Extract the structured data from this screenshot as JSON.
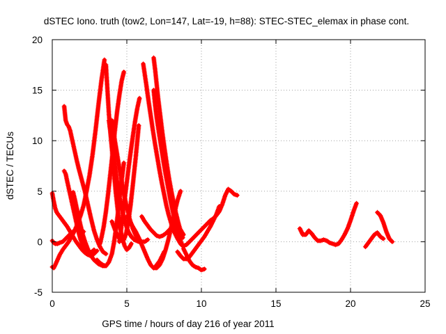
{
  "chart_data": {
    "type": "scatter",
    "title": "dSTEC Iono. truth (tow2, Lon=147, Lat=-19, h=88): STEC-STEC_elemax in phase cont.",
    "xlabel": "GPS time / hours of day 216 of year 2011",
    "ylabel": "dSTEC  / TECUs",
    "xlim": [
      0,
      25
    ],
    "ylim": [
      -5,
      20
    ],
    "xticks": [
      0,
      5,
      10,
      15,
      20,
      25
    ],
    "yticks": [
      -5,
      0,
      5,
      10,
      15,
      20
    ],
    "grid": true,
    "grid_style": "dotted",
    "marker": "plus",
    "colors": {
      "series": "#ff0000",
      "axes": "#000000",
      "grid": "#a0a0a0"
    },
    "series": [
      {
        "x": [
          0.0,
          0.1,
          0.2,
          0.3,
          0.45,
          0.6,
          0.8,
          1.0,
          1.2,
          1.4,
          1.6,
          1.8,
          2.0,
          2.2,
          2.4,
          2.6,
          2.8,
          3.0
        ],
        "y": [
          4.8,
          4.0,
          3.3,
          2.9,
          2.6,
          2.3,
          1.9,
          1.5,
          1.0,
          0.5,
          0.0,
          -0.4,
          -0.8,
          -1.1,
          -1.3,
          -1.4,
          -1.2,
          -0.9
        ]
      },
      {
        "x": [
          0.0,
          0.1,
          0.2,
          0.35,
          0.5,
          0.7,
          0.9,
          1.1,
          1.3,
          1.5,
          1.7,
          1.9,
          2.1
        ],
        "y": [
          0.1,
          -0.1,
          -0.2,
          -0.2,
          -0.1,
          0.0,
          0.3,
          0.6,
          0.9,
          1.1,
          1.3,
          1.2,
          1.0
        ]
      },
      {
        "x": [
          0.0,
          0.1,
          0.2,
          0.35,
          0.5,
          0.7,
          0.9,
          1.1,
          1.3,
          1.5,
          1.7,
          1.9,
          2.1,
          2.3,
          2.5,
          2.7,
          2.9,
          3.1,
          3.3,
          3.5
        ],
        "y": [
          -2.5,
          -2.6,
          -2.3,
          -1.8,
          -1.3,
          -0.8,
          -0.4,
          0.0,
          0.5,
          1.1,
          1.8,
          2.6,
          3.6,
          5.0,
          6.6,
          8.6,
          11.0,
          13.6,
          16.0,
          18.0
        ]
      },
      {
        "x": [
          0.8,
          0.9,
          1.0,
          1.1,
          1.2,
          1.35,
          1.5,
          1.65,
          1.8,
          2.0,
          2.2,
          2.4,
          2.6,
          2.8,
          3.0,
          3.2,
          3.4,
          3.6
        ],
        "y": [
          13.4,
          12.0,
          11.6,
          11.4,
          11.0,
          10.0,
          9.0,
          8.0,
          7.1,
          6.0,
          4.9,
          3.6,
          2.3,
          1.1,
          0.2,
          -0.5,
          -1.0,
          -1.2
        ]
      },
      {
        "x": [
          0.8,
          0.9,
          1.0,
          1.15,
          1.3,
          1.45,
          1.6,
          1.75,
          1.9,
          2.05,
          2.2,
          2.35,
          2.5,
          2.65,
          2.8
        ],
        "y": [
          7.0,
          6.7,
          6.0,
          5.0,
          4.0,
          3.0,
          2.0,
          1.0,
          0.2,
          -0.4,
          -0.8,
          -1.0,
          -1.1,
          -1.0,
          -0.8
        ]
      },
      {
        "x": [
          1.4,
          1.5,
          1.6,
          1.75,
          1.9,
          2.05,
          2.2,
          2.35,
          2.5,
          2.65,
          2.8,
          2.95,
          3.1,
          3.25,
          3.4,
          3.5
        ],
        "y": [
          4.9,
          4.3,
          3.6,
          2.6,
          1.6,
          0.7,
          0.0,
          -0.6,
          -1.1,
          -1.5,
          -1.8,
          -2.0,
          -2.2,
          -2.3,
          -2.4,
          -2.4
        ]
      },
      {
        "x": [
          3.0,
          3.2,
          3.4,
          3.6,
          3.8,
          4.0,
          4.15,
          4.3,
          4.45,
          4.6,
          4.8
        ],
        "y": [
          -1.8,
          -2.1,
          -2.3,
          -2.4,
          -2.0,
          -1.2,
          0.0,
          1.6,
          3.4,
          5.4,
          7.8
        ]
      },
      {
        "x": [
          3.6,
          3.7,
          3.8,
          3.95,
          4.1,
          4.25,
          4.4,
          4.55,
          4.7,
          4.85,
          5.0,
          5.15,
          5.3
        ],
        "y": [
          17.5,
          15.0,
          12.6,
          10.0,
          7.5,
          5.0,
          3.0,
          1.4,
          0.3,
          -0.4,
          -0.8,
          -0.6,
          -0.2
        ]
      },
      {
        "x": [
          3.2,
          3.3,
          3.45,
          3.6,
          3.75,
          3.9,
          4.05,
          4.2,
          4.35,
          4.5,
          4.65,
          4.8
        ],
        "y": [
          -0.2,
          0.4,
          1.5,
          3.0,
          4.8,
          6.8,
          8.9,
          11.0,
          12.9,
          14.5,
          15.9,
          16.8
        ]
      },
      {
        "x": [
          3.8,
          3.9,
          4.0,
          4.1,
          4.2,
          4.35,
          4.5,
          4.65,
          4.8,
          4.95,
          5.1,
          5.3,
          5.5,
          5.8,
          6.1
        ],
        "y": [
          12.0,
          11.0,
          9.8,
          8.7,
          7.6,
          6.0,
          4.6,
          3.4,
          2.4,
          1.6,
          1.0,
          0.5,
          0.2,
          0.0,
          0.0
        ]
      },
      {
        "x": [
          4.5,
          4.6,
          4.7,
          4.8,
          4.95,
          5.1,
          5.25,
          5.4,
          5.55,
          5.7,
          5.85
        ],
        "y": [
          0.0,
          1.0,
          2.3,
          3.6,
          5.3,
          7.1,
          8.8,
          10.4,
          11.9,
          13.2,
          14.2
        ]
      },
      {
        "x": [
          4.0,
          4.1,
          4.2,
          4.35,
          4.5,
          4.65,
          4.8,
          4.95,
          5.1,
          5.25,
          5.4,
          5.6,
          5.8
        ],
        "y": [
          2.0,
          1.6,
          1.2,
          0.7,
          0.3,
          0.1,
          0.2,
          0.8,
          2.0,
          3.6,
          5.6,
          8.4,
          11.5
        ]
      },
      {
        "x": [
          4.0,
          4.2,
          4.4,
          4.6,
          4.8,
          5.0,
          5.2,
          5.4,
          5.6,
          5.8,
          6.0,
          6.2,
          6.4
        ],
        "y": [
          12.0,
          10.0,
          8.2,
          6.4,
          4.8,
          3.4,
          2.2,
          1.3,
          0.6,
          0.2,
          0.0,
          0.0,
          0.2
        ]
      },
      {
        "x": [
          6.1,
          6.2,
          6.3,
          6.45,
          6.6,
          6.75,
          6.9,
          7.05,
          7.2,
          7.35,
          7.5,
          7.65,
          7.8,
          8.0,
          8.2,
          8.4,
          8.6,
          8.8
        ],
        "y": [
          17.6,
          16.6,
          15.6,
          14.0,
          12.5,
          11.0,
          9.6,
          8.3,
          7.0,
          5.8,
          4.7,
          3.6,
          2.7,
          1.7,
          0.9,
          0.3,
          -0.2,
          -0.5
        ]
      },
      {
        "x": [
          6.8,
          6.9,
          7.0,
          7.1,
          7.25,
          7.4,
          7.55,
          7.7,
          7.85,
          8.0,
          8.15,
          8.3,
          8.45,
          8.6,
          8.75
        ],
        "y": [
          18.2,
          17.0,
          15.6,
          14.2,
          12.4,
          10.6,
          9.0,
          7.5,
          6.1,
          4.9,
          3.8,
          2.8,
          1.9,
          1.1,
          0.4
        ]
      },
      {
        "x": [
          6.8,
          6.9,
          7.0,
          7.15,
          7.3,
          7.45,
          7.6,
          7.75,
          7.9,
          8.05,
          8.2,
          8.35,
          8.5,
          8.65,
          8.8
        ],
        "y": [
          15.0,
          13.5,
          12.3,
          10.8,
          9.4,
          8.0,
          6.7,
          5.5,
          4.3,
          3.2,
          2.2,
          1.3,
          0.5,
          -0.1,
          -0.5
        ]
      },
      {
        "x": [
          5.0,
          5.2,
          5.4,
          5.6,
          5.8,
          6.0,
          6.2,
          6.4,
          6.6,
          6.8,
          7.0,
          7.2,
          7.4,
          7.6,
          7.8,
          8.0,
          8.2,
          8.4,
          8.6
        ],
        "y": [
          2.5,
          2.0,
          1.5,
          1.0,
          0.4,
          -0.3,
          -1.0,
          -1.7,
          -2.3,
          -2.6,
          -2.6,
          -2.3,
          -1.7,
          -0.8,
          0.3,
          1.6,
          2.9,
          4.1,
          5.0
        ]
      },
      {
        "x": [
          6.0,
          6.2,
          6.4,
          6.6,
          6.8,
          7.0,
          7.2,
          7.4,
          7.6,
          7.8,
          8.0,
          8.2,
          8.4,
          8.6,
          8.8
        ],
        "y": [
          2.5,
          2.0,
          1.6,
          1.2,
          0.9,
          0.6,
          0.5,
          0.6,
          0.8,
          1.1,
          1.4,
          1.6,
          1.5,
          1.2,
          0.7
        ]
      },
      {
        "x": [
          6.8,
          6.9,
          7.0,
          7.1,
          7.2,
          7.3,
          7.4,
          7.5
        ],
        "y": [
          -2.6,
          -2.5,
          -2.3,
          -2.1,
          -1.9,
          -1.6,
          -1.3,
          -1.0
        ]
      },
      {
        "x": [
          8.4,
          8.6,
          8.8,
          9.0,
          9.2,
          9.4,
          9.6,
          9.8,
          10.0,
          10.2,
          10.4,
          10.6,
          10.8,
          11.0,
          11.2
        ],
        "y": [
          -1.0,
          -1.4,
          -1.7,
          -1.7,
          -1.5,
          -1.1,
          -0.7,
          -0.3,
          0.1,
          0.5,
          1.0,
          1.5,
          2.1,
          2.7,
          3.5
        ]
      },
      {
        "x": [
          8.8,
          9.0,
          9.2,
          9.4,
          9.6,
          9.8,
          10.0,
          10.2
        ],
        "y": [
          -0.7,
          -1.3,
          -1.9,
          -2.3,
          -2.5,
          -2.6,
          -2.8,
          -2.7
        ]
      },
      {
        "x": [
          8.6,
          8.8,
          9.0,
          9.2,
          9.4,
          9.6,
          9.8,
          10.0,
          10.2,
          10.4,
          10.6,
          10.8,
          11.0,
          11.2,
          11.4,
          11.6,
          11.8,
          12.0,
          12.2,
          12.4
        ],
        "y": [
          -0.2,
          -0.4,
          -0.3,
          0.0,
          0.3,
          0.6,
          0.9,
          1.2,
          1.5,
          1.8,
          2.1,
          2.3,
          2.6,
          3.0,
          3.7,
          4.6,
          5.2,
          5.0,
          4.7,
          4.6
        ]
      },
      {
        "x": [
          16.6,
          16.8,
          17.0,
          17.2,
          17.4,
          17.6,
          17.8,
          18.0,
          18.2,
          18.4,
          18.6,
          18.8,
          19.0,
          19.2,
          19.4,
          19.6,
          19.8,
          20.0,
          20.2,
          20.4
        ],
        "y": [
          1.3,
          0.7,
          0.7,
          1.1,
          0.8,
          0.4,
          0.1,
          0.1,
          0.2,
          0.1,
          -0.1,
          -0.2,
          -0.3,
          -0.2,
          0.2,
          0.7,
          1.3,
          2.1,
          3.0,
          3.8
        ]
      },
      {
        "x": [
          21.0,
          21.2,
          21.4,
          21.6,
          21.8,
          22.0,
          22.2
        ],
        "y": [
          -0.5,
          -0.1,
          0.3,
          0.7,
          0.9,
          0.5,
          0.3
        ]
      },
      {
        "x": [
          21.8,
          22.0,
          22.2,
          22.4,
          22.6,
          22.8
        ],
        "y": [
          2.9,
          2.6,
          1.9,
          1.0,
          0.3,
          0.0
        ]
      }
    ]
  }
}
